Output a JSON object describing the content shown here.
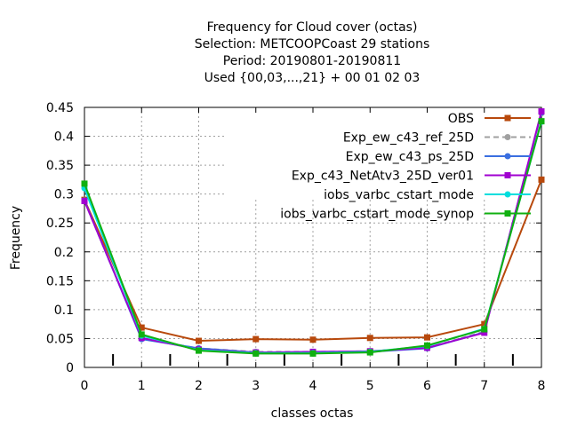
{
  "chart_data": {
    "type": "line",
    "title": [
      "Frequency  for Cloud cover (octas)",
      "Selection: METCOOPCoast     29 stations",
      "Period: 20190801-20190811",
      "Used {00,03,...,21} + 00 01 02 03"
    ],
    "xlabel": "classes octas",
    "ylabel": "Frequency",
    "x": [
      0,
      1,
      2,
      3,
      4,
      5,
      6,
      7,
      8
    ],
    "xlim": [
      0,
      8
    ],
    "ylim": [
      0,
      0.45
    ],
    "x_ticks": [
      "0",
      "1",
      "2",
      "3",
      "4",
      "5",
      "6",
      "7",
      "8"
    ],
    "y_ticks": [
      "0",
      "0.05",
      "0.1",
      "0.15",
      "0.2",
      "0.25",
      "0.3",
      "0.35",
      "0.4",
      "0.45"
    ],
    "grid": true,
    "legend_position": "top-right",
    "series": [
      {
        "name": "OBS",
        "color": "#b8490c",
        "marker": "square",
        "dash": "",
        "values": [
          0.29,
          0.069,
          0.046,
          0.049,
          0.048,
          0.051,
          0.052,
          0.075,
          0.325
        ]
      },
      {
        "name": "Exp_ew_c43_ref_25D",
        "color": "#a0a0a0",
        "marker": "circle",
        "dash": "6,4",
        "values": [
          0.288,
          0.05,
          0.033,
          0.027,
          0.027,
          0.028,
          0.034,
          0.062,
          0.44
        ]
      },
      {
        "name": "Exp_ew_c43_ps_25D",
        "color": "#3a6fe0",
        "marker": "circle",
        "dash": "",
        "values": [
          0.289,
          0.049,
          0.033,
          0.026,
          0.026,
          0.027,
          0.033,
          0.061,
          0.441
        ]
      },
      {
        "name": "Exp_c43_NetAtv3_25D_ver01",
        "color": "#a000d0",
        "marker": "square",
        "dash": "",
        "values": [
          0.288,
          0.051,
          0.031,
          0.026,
          0.027,
          0.028,
          0.034,
          0.06,
          0.443
        ]
      },
      {
        "name": "iobs_varbc_cstart_mode",
        "color": "#00dede",
        "marker": "circle",
        "dash": "",
        "values": [
          0.31,
          0.055,
          0.03,
          0.025,
          0.025,
          0.027,
          0.037,
          0.067,
          0.425
        ]
      },
      {
        "name": "iobs_varbc_cstart_mode_synop",
        "color": "#10b010",
        "marker": "square",
        "dash": "",
        "values": [
          0.318,
          0.057,
          0.029,
          0.024,
          0.024,
          0.026,
          0.038,
          0.066,
          0.426
        ]
      }
    ]
  }
}
